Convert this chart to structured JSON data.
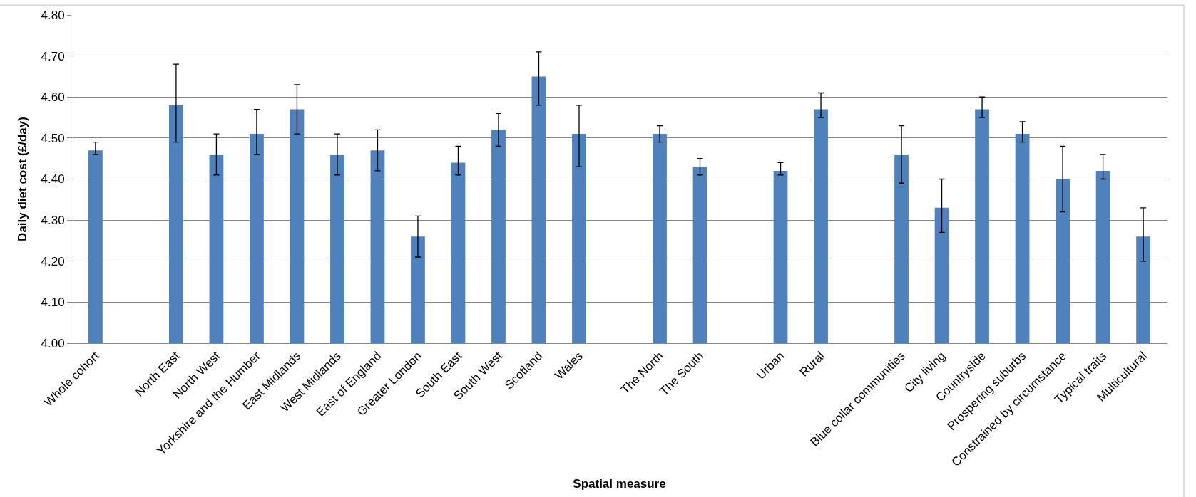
{
  "chart_data": {
    "type": "bar",
    "xlabel": "Spatial measure",
    "ylabel": "Daily diet cost (£/day)",
    "categories": [
      "Whole cohort",
      null,
      "North East",
      "North West",
      "Yorkshire and the Humber",
      "East Midlands",
      "West Midlands",
      "East of England",
      "Greater London",
      "South East",
      "South West",
      "Scotland",
      "Wales",
      null,
      "The North",
      "The South",
      null,
      "Urban",
      "Rural",
      null,
      "Blue collar communities",
      "City living",
      "Countryside",
      "Prospering suburbs",
      "Constrained by circumstance",
      "Typical traits",
      "Multicultural"
    ],
    "values": [
      4.47,
      null,
      4.58,
      4.46,
      4.51,
      4.57,
      4.46,
      4.47,
      4.26,
      4.44,
      4.52,
      4.65,
      4.51,
      null,
      4.51,
      4.43,
      null,
      4.42,
      4.57,
      null,
      4.46,
      4.33,
      4.57,
      4.51,
      4.4,
      4.42,
      4.26
    ],
    "errors": [
      [
        4.46,
        4.49
      ],
      null,
      [
        4.49,
        4.68
      ],
      [
        4.41,
        4.51
      ],
      [
        4.46,
        4.57
      ],
      [
        4.51,
        4.63
      ],
      [
        4.41,
        4.51
      ],
      [
        4.42,
        4.52
      ],
      [
        4.21,
        4.31
      ],
      [
        4.41,
        4.48
      ],
      [
        4.48,
        4.56
      ],
      [
        4.58,
        4.71
      ],
      [
        4.43,
        4.58
      ],
      null,
      [
        4.49,
        4.53
      ],
      [
        4.41,
        4.45
      ],
      null,
      [
        4.41,
        4.44
      ],
      [
        4.55,
        4.61
      ],
      null,
      [
        4.39,
        4.53
      ],
      [
        4.27,
        4.4
      ],
      [
        4.55,
        4.6
      ],
      [
        4.49,
        4.54
      ],
      [
        4.32,
        4.48
      ],
      [
        4.4,
        4.46
      ],
      [
        4.2,
        4.33
      ]
    ],
    "color": "#4f81bd",
    "ylim": [
      4.0,
      4.8
    ],
    "yticks": [
      {
        "value": 4.0,
        "label": "4.00"
      },
      {
        "value": 4.1,
        "label": "4.10"
      },
      {
        "value": 4.2,
        "label": "4.20"
      },
      {
        "value": 4.3,
        "label": "4.30"
      },
      {
        "value": 4.4,
        "label": "4.40"
      },
      {
        "value": 4.5,
        "label": "4.50"
      },
      {
        "value": 4.6,
        "label": "4.60"
      },
      {
        "value": 4.7,
        "label": "4.70"
      },
      {
        "value": 4.8,
        "label": "4.80"
      }
    ],
    "grid": "y"
  }
}
